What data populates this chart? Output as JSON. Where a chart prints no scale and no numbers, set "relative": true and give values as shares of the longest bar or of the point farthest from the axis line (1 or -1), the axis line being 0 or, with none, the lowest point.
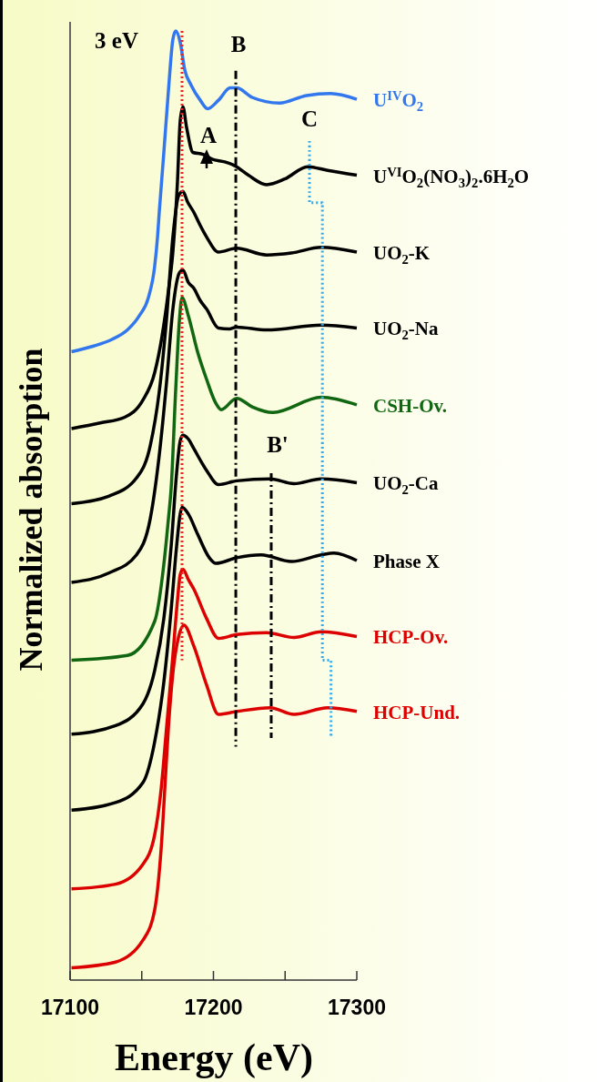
{
  "chart_data": {
    "type": "line",
    "relative": true,
    "xlabel": "Energy (eV)",
    "ylabel": "Normalized absorption",
    "xlim": [
      17100,
      17300
    ],
    "xticks": [
      17100,
      {
        "value": 17150,
        "label": null
      },
      17200,
      {
        "value": 17250,
        "label": null
      },
      17300
    ],
    "series": [
      {
        "name": "U$^{IV}$O$_{2}$",
        "color": "#3377ee",
        "x": [
          17101,
          17116.5,
          17129.2,
          17140,
          17148.3,
          17154.6,
          17159,
          17161,
          17162.2,
          17165.4,
          17168.6,
          17171.7,
          17173.7,
          17176.8,
          17180,
          17184.4,
          17190.8,
          17195.9,
          17203.5,
          17211.7,
          17216.2,
          17227,
          17246,
          17265,
          17281.6,
          17300
        ],
        "values": [
          0.662,
          0.668,
          0.675,
          0.685,
          0.7,
          0.719,
          0.752,
          0.783,
          0.809,
          0.872,
          0.937,
          0.991,
          1.0,
          0.988,
          0.959,
          0.943,
          0.927,
          0.918,
          0.927,
          0.94,
          0.94,
          0.93,
          0.924,
          0.932,
          0.934,
          0.928
        ]
      },
      {
        "name": "U$^{VI}$O$_{2}$(NO$_{3}$)$_{2}$.6H$_{2}$O",
        "color": "#000000",
        "x": [
          17101,
          17121,
          17138.1,
          17150.8,
          17159,
          17164.1,
          17168.6,
          17171.7,
          17174.9,
          17176.8,
          17178.7,
          17181.3,
          17185.7,
          17192.7,
          17199,
          17207.9,
          17214.9,
          17224.4,
          17237.1,
          17249.8,
          17265.7,
          17279.7,
          17300
        ],
        "values": [
          0.581,
          0.587,
          0.593,
          0.611,
          0.64,
          0.678,
          0.726,
          0.767,
          0.841,
          0.905,
          0.92,
          0.898,
          0.872,
          0.87,
          0.865,
          0.862,
          0.858,
          0.848,
          0.838,
          0.844,
          0.857,
          0.853,
          0.848
        ]
      },
      {
        "name": "UO$_{2}$-K",
        "color": "#000000",
        "x": [
          17101,
          17127.3,
          17146.3,
          17155.9,
          17162.2,
          17167.3,
          17171.7,
          17175.6,
          17178.7,
          17181.9,
          17186.3,
          17190.8,
          17195.2,
          17203.5,
          17216.2,
          17237.1,
          17254.3,
          17275.2,
          17300
        ],
        "values": [
          0.502,
          0.51,
          0.529,
          0.563,
          0.62,
          0.697,
          0.783,
          0.826,
          0.831,
          0.82,
          0.809,
          0.795,
          0.783,
          0.767,
          0.771,
          0.764,
          0.766,
          0.772,
          0.767
        ]
      },
      {
        "name": "UO$_{2}$-Na",
        "color": "#000000",
        "x": [
          17101,
          17127.3,
          17146.3,
          17155.9,
          17162.2,
          17167.3,
          17171.7,
          17176.2,
          17178.7,
          17182.5,
          17186.3,
          17190.8,
          17195.2,
          17203.5,
          17211.1,
          17216.2,
          17237.1,
          17275.2,
          17300
        ],
        "values": [
          0.419,
          0.429,
          0.448,
          0.486,
          0.553,
          0.63,
          0.707,
          0.745,
          0.748,
          0.735,
          0.729,
          0.716,
          0.707,
          0.687,
          0.686,
          0.688,
          0.685,
          0.69,
          0.687
        ]
      },
      {
        "name": "CSH-Ov.",
        "color": "#116611",
        "x": [
          17101,
          17140,
          17159,
          17165.4,
          17168.6,
          17170.5,
          17173.7,
          17176.2,
          17178.1,
          17182.5,
          17188.9,
          17195.2,
          17201.6,
          17205.4,
          17216.2,
          17227,
          17241.6,
          17275.2,
          17300
        ],
        "values": [
          0.337,
          0.342,
          0.378,
          0.438,
          0.486,
          0.518,
          0.623,
          0.694,
          0.719,
          0.7,
          0.662,
          0.633,
          0.608,
          0.601,
          0.613,
          0.604,
          0.598,
          0.614,
          0.606
        ]
      },
      {
        "name": "UO$_{2}$-Ca",
        "color": "#000000",
        "x": [
          17101,
          17131.7,
          17150.8,
          17159,
          17165.4,
          17170.5,
          17174.3,
          17176.8,
          17178.7,
          17182.5,
          17186.3,
          17195.2,
          17203.5,
          17216.2,
          17239.7,
          17256.2,
          17275.2,
          17300
        ],
        "values": [
          0.259,
          0.268,
          0.291,
          0.326,
          0.381,
          0.457,
          0.534,
          0.568,
          0.574,
          0.57,
          0.56,
          0.537,
          0.522,
          0.526,
          0.528,
          0.523,
          0.528,
          0.524
        ]
      },
      {
        "name": "Phase X",
        "color": "#000000",
        "x": [
          17101,
          17131.7,
          17150.8,
          17159,
          17165.4,
          17170.5,
          17174.3,
          17176.8,
          17178.1,
          17182.5,
          17188.9,
          17197.1,
          17201.6,
          17216.2,
          17233.3,
          17254.3,
          17275.2,
          17284.1,
          17300
        ],
        "values": [
          0.179,
          0.187,
          0.208,
          0.251,
          0.314,
          0.39,
          0.457,
          0.491,
          0.498,
          0.491,
          0.47,
          0.445,
          0.439,
          0.445,
          0.448,
          0.441,
          0.448,
          0.45,
          0.442
        ]
      },
      {
        "name": "HCP-Ov.",
        "color": "#dd0000",
        "x": [
          17101,
          17131.7,
          17150.8,
          17159,
          17163.5,
          17167.3,
          17171.7,
          17174.9,
          17176.8,
          17178.7,
          17182.5,
          17186.3,
          17195.2,
          17203.5,
          17216.2,
          17237.1,
          17256.2,
          17275.2,
          17300
        ],
        "values": [
          0.096,
          0.101,
          0.122,
          0.153,
          0.201,
          0.266,
          0.342,
          0.4,
          0.427,
          0.433,
          0.422,
          0.412,
          0.381,
          0.36,
          0.364,
          0.366,
          0.361,
          0.367,
          0.362
        ]
      },
      {
        "name": "HCP-Und.",
        "color": "#dd0000",
        "x": [
          17101,
          17131.7,
          17150.8,
          17159,
          17163.5,
          17166.7,
          17168.6,
          17171.7,
          17175.6,
          17179.4,
          17186.3,
          17195.2,
          17203.5,
          17216.2,
          17239.7,
          17256.2,
          17279.7,
          17300
        ],
        "values": [
          0.013,
          0.019,
          0.042,
          0.074,
          0.138,
          0.218,
          0.266,
          0.323,
          0.361,
          0.374,
          0.352,
          0.311,
          0.28,
          0.283,
          0.287,
          0.28,
          0.287,
          0.283
        ]
      },
      {
        "type": "line",
        "color": "#ee2222",
        "line_style": "dotted",
        "x": [
          17178.1,
          17178.1
        ],
        "values": [
          1.0,
          0.337
        ]
      },
      {
        "type": "line",
        "color": "#000000",
        "line_style": "dashdot",
        "x": [
          17215.6,
          17215.6
        ],
        "values": [
          0.958,
          0.246
        ]
      },
      {
        "type": "line",
        "color": "#000000",
        "line_style": "dashdot",
        "x": [
          17240.3,
          17240.3
        ],
        "values": [
          0.534,
          0.255
        ]
      },
      {
        "type": "line",
        "color": "#33aaee",
        "line_style": "dotted",
        "x": [
          17267,
          17267,
          17276,
          17276,
          17282,
          17282
        ],
        "values": [
          0.884,
          0.819,
          0.819,
          0.337,
          0.337,
          0.256
        ]
      }
    ],
    "annotations": [
      "3 eV",
      "A",
      "B",
      "B'",
      "C"
    ]
  }
}
